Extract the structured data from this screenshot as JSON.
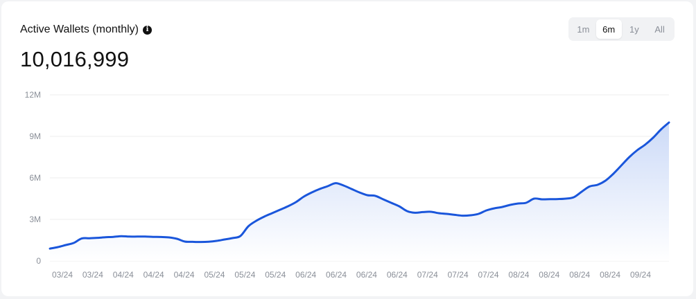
{
  "header": {
    "title": "Active Wallets (monthly)",
    "info_icon": "info-icon",
    "big_value": "10,016,999"
  },
  "range_selector": {
    "options": [
      "1m",
      "6m",
      "1y",
      "All"
    ],
    "selected": "6m"
  },
  "colors": {
    "line": "#1a56db",
    "area_top": "#c9d8f7",
    "area_bottom": "#ffffff",
    "grid": "#eeeeee",
    "tick": "#8a8f98"
  },
  "chart_data": {
    "type": "area",
    "ylim": [
      0,
      12000000
    ],
    "y_ticks": [
      {
        "value": 0,
        "label": "0"
      },
      {
        "value": 3000000,
        "label": "3M"
      },
      {
        "value": 6000000,
        "label": "6M"
      },
      {
        "value": 9000000,
        "label": "9M"
      },
      {
        "value": 12000000,
        "label": "12M"
      }
    ],
    "x_tick_labels": [
      "03/24",
      "03/24",
      "04/24",
      "04/24",
      "04/24",
      "05/24",
      "05/24",
      "05/24",
      "06/24",
      "06/24",
      "06/24",
      "06/24",
      "07/24",
      "07/24",
      "07/24",
      "08/24",
      "08/24",
      "08/24",
      "08/24",
      "09/24"
    ],
    "grid": true,
    "legend": "none",
    "series": [
      {
        "values": [
          890000,
          1000000,
          1150000,
          1300000,
          1620000,
          1640000,
          1670000,
          1710000,
          1740000,
          1790000,
          1760000,
          1760000,
          1760000,
          1740000,
          1730000,
          1700000,
          1600000,
          1400000,
          1380000,
          1370000,
          1390000,
          1450000,
          1550000,
          1650000,
          1800000,
          2500000,
          2900000,
          3200000,
          3450000,
          3700000,
          3950000,
          4250000,
          4650000,
          4950000,
          5200000,
          5400000,
          5620000,
          5450000,
          5200000,
          4950000,
          4750000,
          4700000,
          4450000,
          4200000,
          3950000,
          3600000,
          3480000,
          3530000,
          3550000,
          3450000,
          3400000,
          3330000,
          3270000,
          3300000,
          3400000,
          3650000,
          3800000,
          3900000,
          4050000,
          4150000,
          4200000,
          4500000,
          4450000,
          4460000,
          4470000,
          4500000,
          4600000,
          5000000,
          5380000,
          5500000,
          5800000,
          6300000,
          6900000,
          7500000,
          8000000,
          8400000,
          8900000,
          9500000,
          10000000
        ]
      }
    ]
  }
}
